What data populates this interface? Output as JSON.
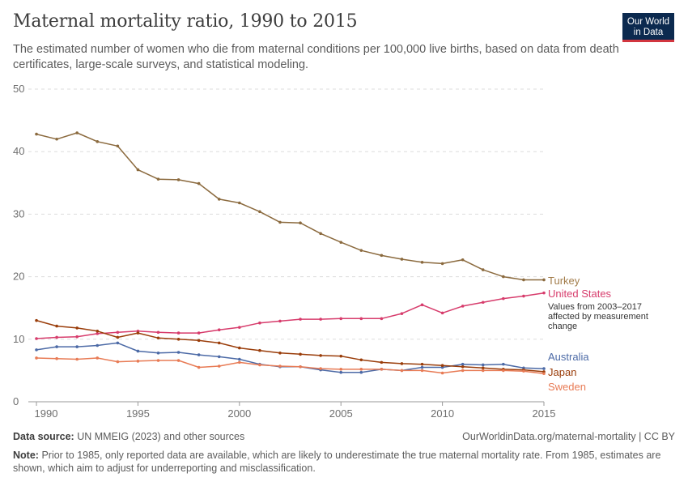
{
  "header": {
    "title": "Maternal mortality ratio, 1990 to 2015",
    "subtitle": "The estimated number of women who die from maternal conditions per 100,000 live births, based on data from death certificates, large-scale surveys, and statistical modeling.",
    "logo_line1": "Our World",
    "logo_line2": "in Data"
  },
  "footer": {
    "source_label": "Data source:",
    "source_text": "UN MMEIG (2023) and other sources",
    "url_text": "OurWorldinData.org/maternal-mortality | CC BY",
    "note_label": "Note:",
    "note_text": "Prior to 1985, only reported data are available, which are likely to underestimate the true maternal mortality rate. From 1985, estimates are shown, which aim to adjust for underreporting and misclassification."
  },
  "chart_data": {
    "type": "line",
    "title": "Maternal mortality ratio, 1990 to 2015",
    "xlabel": "",
    "ylabel": "",
    "xlim": [
      1989.6,
      2015
    ],
    "ylim": [
      0,
      50
    ],
    "y_ticks": [
      0,
      10,
      20,
      30,
      40,
      50
    ],
    "x_ticks": [
      1990,
      1995,
      2000,
      2005,
      2010,
      2015
    ],
    "grid": "horizontal dashed",
    "legend": "inline labels at right end of lines",
    "annotation": [
      "Values from 2003–2017",
      "affected by measurement",
      "change"
    ],
    "series": [
      {
        "name": "Turkey",
        "color": "#8b6a3e",
        "label_color": "#a27c4a",
        "x": [
          1990,
          1991,
          1992,
          1993,
          1994,
          1995,
          1996,
          1997,
          1998,
          1999,
          2000,
          2001,
          2002,
          2003,
          2004,
          2005,
          2006,
          2007,
          2008,
          2009,
          2010,
          2011,
          2012,
          2013,
          2014,
          2015
        ],
        "y": [
          42.8,
          42.0,
          43.0,
          41.6,
          40.9,
          37.1,
          35.6,
          35.5,
          34.9,
          32.4,
          31.8,
          30.4,
          28.7,
          28.6,
          26.9,
          25.5,
          24.2,
          23.4,
          22.8,
          22.3,
          22.1,
          22.7,
          21.1,
          20.0,
          19.5,
          19.5
        ]
      },
      {
        "name": "United States",
        "color": "#d73c6c",
        "label_color": "#d73c6c",
        "x": [
          1990,
          1991,
          1992,
          1993,
          1994,
          1995,
          1996,
          1997,
          1998,
          1999,
          2000,
          2001,
          2002,
          2003,
          2004,
          2005,
          2006,
          2007,
          2008,
          2009,
          2010,
          2011,
          2012,
          2013,
          2014,
          2015
        ],
        "y": [
          10.1,
          10.3,
          10.4,
          10.9,
          11.1,
          11.3,
          11.1,
          11.0,
          11.0,
          11.5,
          11.9,
          12.6,
          12.9,
          13.2,
          13.2,
          13.3,
          13.3,
          13.3,
          14.1,
          15.5,
          14.2,
          15.3,
          15.9,
          16.5,
          16.9,
          17.4
        ]
      },
      {
        "name": "Australia",
        "color": "#4c6aa6",
        "label_color": "#4c6aa6",
        "x": [
          1990,
          1991,
          1992,
          1993,
          1994,
          1995,
          1996,
          1997,
          1998,
          1999,
          2000,
          2001,
          2002,
          2003,
          2004,
          2005,
          2006,
          2007,
          2008,
          2009,
          2010,
          2011,
          2012,
          2013,
          2014,
          2015
        ],
        "y": [
          8.3,
          8.8,
          8.8,
          9.0,
          9.4,
          8.1,
          7.8,
          7.9,
          7.5,
          7.2,
          6.8,
          6.0,
          5.6,
          5.6,
          5.1,
          4.7,
          4.7,
          5.2,
          5.0,
          5.5,
          5.5,
          6.0,
          5.9,
          6.0,
          5.4,
          5.3
        ]
      },
      {
        "name": "Japan",
        "color": "#9a3d0a",
        "label_color": "#9a3d0a",
        "x": [
          1990,
          1991,
          1992,
          1993,
          1994,
          1995,
          1996,
          1997,
          1998,
          1999,
          2000,
          2001,
          2002,
          2003,
          2004,
          2005,
          2006,
          2007,
          2008,
          2009,
          2010,
          2011,
          2012,
          2013,
          2014,
          2015
        ],
        "y": [
          13.0,
          12.1,
          11.8,
          11.3,
          10.3,
          11.0,
          10.2,
          10.0,
          9.8,
          9.4,
          8.6,
          8.2,
          7.8,
          7.6,
          7.4,
          7.3,
          6.7,
          6.3,
          6.1,
          6.0,
          5.8,
          5.6,
          5.4,
          5.2,
          5.1,
          4.8
        ]
      },
      {
        "name": "Sweden",
        "color": "#e87b55",
        "label_color": "#e87b55",
        "x": [
          1990,
          1991,
          1992,
          1993,
          1994,
          1995,
          1996,
          1997,
          1998,
          1999,
          2000,
          2001,
          2002,
          2003,
          2004,
          2005,
          2006,
          2007,
          2008,
          2009,
          2010,
          2011,
          2012,
          2013,
          2014,
          2015
        ],
        "y": [
          7.0,
          6.9,
          6.8,
          7.0,
          6.4,
          6.5,
          6.6,
          6.6,
          5.5,
          5.7,
          6.3,
          5.9,
          5.7,
          5.6,
          5.3,
          5.2,
          5.2,
          5.2,
          5.0,
          5.0,
          4.6,
          5.0,
          5.0,
          5.0,
          4.9,
          4.5
        ]
      }
    ]
  }
}
